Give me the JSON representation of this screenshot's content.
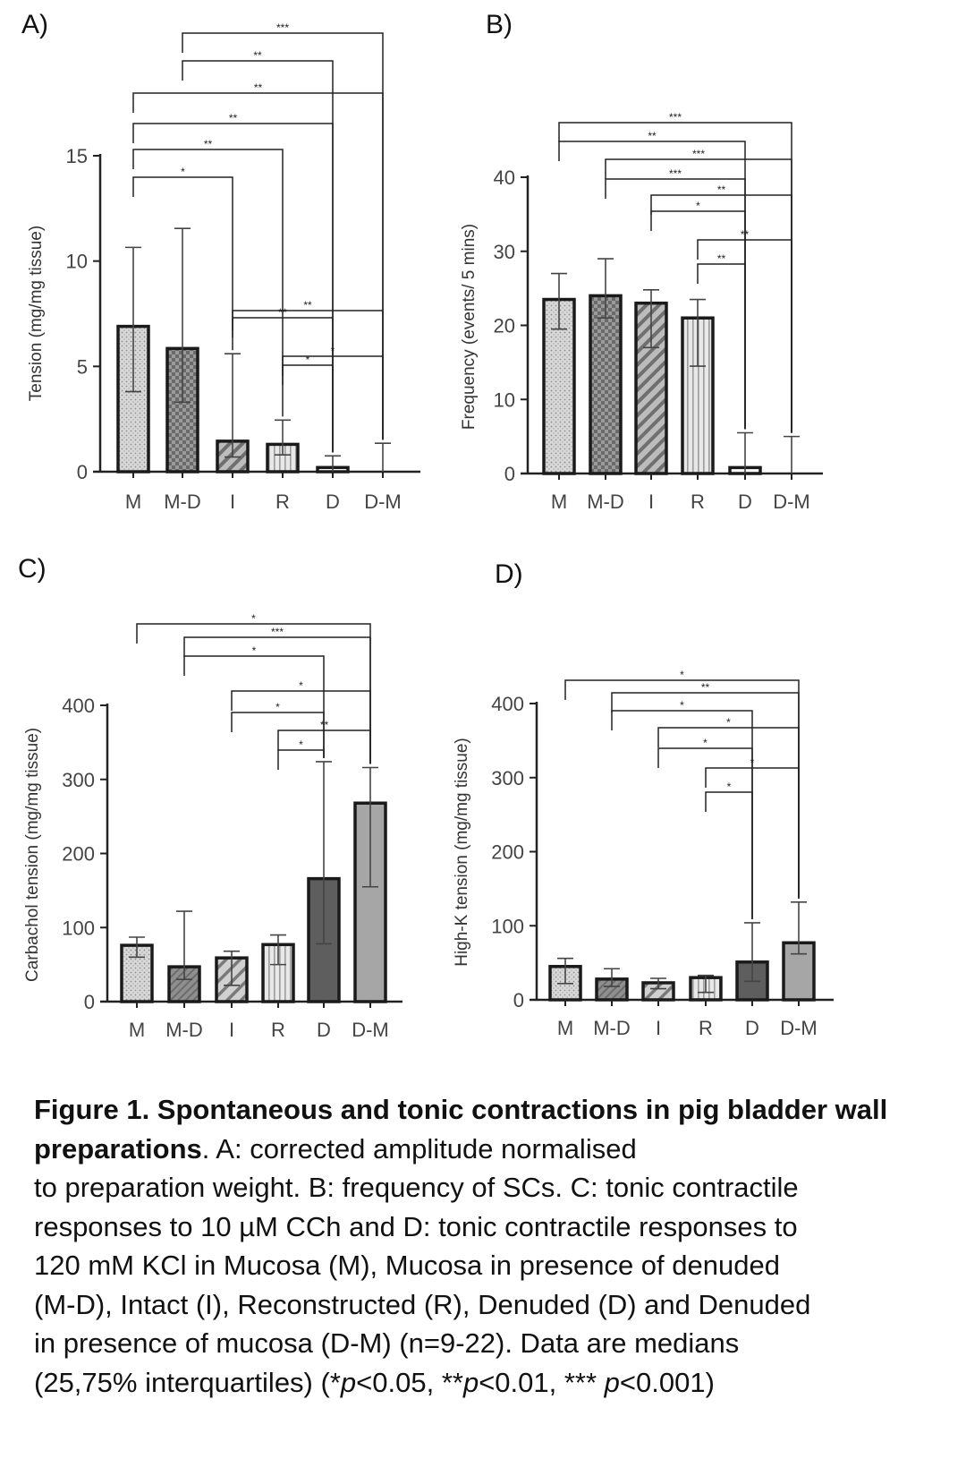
{
  "chart_data": [
    {
      "panel": "A)",
      "type": "bar",
      "categories": [
        "M",
        "M-D",
        "I",
        "R",
        "D",
        "D-M"
      ],
      "values": [
        6.9,
        5.85,
        1.45,
        1.3,
        0.2,
        0.0
      ],
      "error_low": [
        3.8,
        3.3,
        0.7,
        0.8,
        0.0,
        0.0
      ],
      "error_high": [
        10.65,
        11.55,
        5.6,
        2.45,
        0.75,
        1.35
      ],
      "ylabel": "Tension (mg/mg tissue)",
      "ylim": [
        0,
        15
      ],
      "yticks": [
        0,
        5,
        10,
        15
      ],
      "patterns": [
        "dots",
        "checker",
        "diag-dense",
        "vlines",
        "solid-white",
        "solid-white"
      ],
      "significance": [
        {
          "from": "M-D",
          "to": "D-M",
          "label": "***"
        },
        {
          "from": "M-D",
          "to": "D",
          "label": "**"
        },
        {
          "from": "M",
          "to": "D-M",
          "label": "**"
        },
        {
          "from": "M",
          "to": "D",
          "label": "**"
        },
        {
          "from": "M",
          "to": "R",
          "label": "**"
        },
        {
          "from": "M",
          "to": "I",
          "label": "*"
        },
        {
          "from": "I",
          "to": "D-M",
          "label": "**"
        },
        {
          "from": "I",
          "to": "D",
          "label": "**"
        },
        {
          "from": "R",
          "to": "D-M",
          "label": "*"
        },
        {
          "from": "R",
          "to": "D",
          "label": "*"
        }
      ]
    },
    {
      "panel": "B)",
      "type": "bar",
      "categories": [
        "M",
        "M-D",
        "I",
        "R",
        "D",
        "D-M"
      ],
      "values": [
        23.5,
        24.0,
        23.0,
        21.0,
        0.8,
        0.0
      ],
      "error_low": [
        19.5,
        21.0,
        17.0,
        14.5,
        0.0,
        0.0
      ],
      "error_high": [
        27.0,
        29.0,
        24.8,
        23.5,
        5.5,
        5.0
      ],
      "ylabel": "Frequency  (events/ 5 mins)",
      "ylim": [
        0,
        40
      ],
      "yticks": [
        0,
        10,
        20,
        30,
        40
      ],
      "patterns": [
        "dots",
        "checker",
        "diag-dense",
        "vlines",
        "solid-white",
        "solid-white"
      ],
      "significance": [
        {
          "from": "M",
          "to": "D-M",
          "label": "***"
        },
        {
          "from": "M",
          "to": "D",
          "label": "**"
        },
        {
          "from": "M-D",
          "to": "D-M",
          "label": "***"
        },
        {
          "from": "M-D",
          "to": "D",
          "label": "***"
        },
        {
          "from": "I",
          "to": "D-M",
          "label": "**"
        },
        {
          "from": "I",
          "to": "D",
          "label": "*"
        },
        {
          "from": "R",
          "to": "D-M",
          "label": "**"
        },
        {
          "from": "R",
          "to": "D",
          "label": "**"
        }
      ]
    },
    {
      "panel": "C)",
      "type": "bar",
      "categories": [
        "M",
        "M-D",
        "I",
        "R",
        "D",
        "D-M"
      ],
      "values": [
        76,
        47,
        59,
        77,
        166,
        268
      ],
      "error_low": [
        60,
        30,
        22,
        50,
        78,
        155
      ],
      "error_high": [
        87,
        122,
        68,
        90,
        324,
        316
      ],
      "ylabel": "Carbachol tension (mg/mg tissue)",
      "ylim": [
        0,
        400
      ],
      "yticks": [
        0,
        100,
        200,
        300,
        400
      ],
      "patterns": [
        "dots",
        "diag-light",
        "diag-wide",
        "vlines",
        "dark",
        "grey"
      ],
      "significance": [
        {
          "from": "M",
          "to": "D-M",
          "label": "*"
        },
        {
          "from": "M-D",
          "to": "D-M",
          "label": "***"
        },
        {
          "from": "M-D",
          "to": "D",
          "label": "*"
        },
        {
          "from": "I",
          "to": "D-M",
          "label": "*"
        },
        {
          "from": "I",
          "to": "D",
          "label": "*"
        },
        {
          "from": "R",
          "to": "D-M",
          "label": "**"
        },
        {
          "from": "R",
          "to": "D",
          "label": "*"
        }
      ]
    },
    {
      "panel": "D)",
      "type": "bar",
      "categories": [
        "M",
        "M-D",
        "I",
        "R",
        "D",
        "D-M"
      ],
      "values": [
        45,
        28,
        23,
        30,
        51,
        77
      ],
      "error_low": [
        22,
        18,
        15,
        10,
        25,
        62
      ],
      "error_high": [
        56,
        42,
        29,
        33,
        104,
        132
      ],
      "ylabel": "High-K tension (mg/mg tissue)",
      "ylim": [
        0,
        400
      ],
      "yticks": [
        0,
        100,
        200,
        300,
        400
      ],
      "patterns": [
        "dots",
        "diag-light",
        "diag-wide",
        "vlines",
        "dark",
        "grey"
      ],
      "significance": [
        {
          "from": "M",
          "to": "D-M",
          "label": "*"
        },
        {
          "from": "M-D",
          "to": "D-M",
          "label": "**"
        },
        {
          "from": "M-D",
          "to": "D",
          "label": "*"
        },
        {
          "from": "I",
          "to": "D-M",
          "label": "*"
        },
        {
          "from": "I",
          "to": "D",
          "label": "*"
        },
        {
          "from": "R",
          "to": "D-M",
          "label": "*"
        },
        {
          "from": "R",
          "to": "D",
          "label": "*"
        }
      ]
    }
  ],
  "caption": {
    "bold_title": "Figure 1.  Spontaneous and tonic contractions in pig bladder wall preparations",
    "lines": [
      ". A: corrected amplitude normalised",
      "to preparation weight. B: frequency of SCs. C: tonic contractile",
      "responses to 10 µM CCh and D: tonic contractile responses to",
      "120 mM KCl in Mucosa (M), Mucosa in presence of denuded",
      "(M-D), Intact (I), Reconstructed (R), Denuded (D) and Denuded",
      "in presence of mucosa (D-M) (n=9-22). Data are medians",
      "(25,75% interquartiles) ("
    ],
    "stats_p": "p",
    "stats_a": "<0.05, **",
    "stats_b": "<0.01, *** ",
    "stats_c": "<0.001)",
    "stats_star": "*"
  }
}
